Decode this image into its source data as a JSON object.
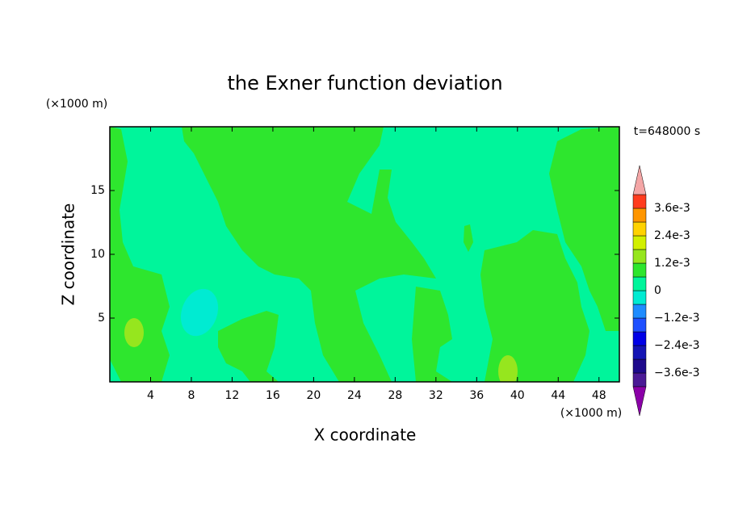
{
  "chart_data": {
    "type": "contour",
    "title": "the Exner function deviation",
    "xlabel": "X coordinate",
    "ylabel": "Z coordinate",
    "x_unit_label": "(×1000 m)",
    "y_unit_label": "(×1000 m)",
    "time_label": "t=648000 s",
    "xlim": [
      0,
      50
    ],
    "ylim": [
      0,
      20
    ],
    "xticks": [
      4,
      8,
      12,
      16,
      20,
      24,
      28,
      32,
      36,
      40,
      44,
      48
    ],
    "yticks": [
      5,
      10,
      15
    ],
    "colorbar": {
      "levels": [
        -0.0042,
        -0.0036,
        -0.003,
        -0.0024,
        -0.0018,
        -0.0012,
        -0.0006,
        0,
        0.0006,
        0.0012,
        0.0018,
        0.0024,
        0.003,
        0.0036,
        0.0042
      ],
      "colors": [
        "#4b1a96",
        "#1e0a8c",
        "#1414b4",
        "#0000e6",
        "#1e50ff",
        "#1e8cff",
        "#00ebd2",
        "#00f59b",
        "#2ee62e",
        "#96e61e",
        "#d2f000",
        "#ffd200",
        "#ff9600",
        "#ff3c1e"
      ],
      "under_color": "#8b00a8",
      "over_color": "#f4a6a6",
      "ticks": [
        {
          "value": 0.0036,
          "label": "3.6e-3"
        },
        {
          "value": 0.0024,
          "label": "2.4e-3"
        },
        {
          "value": 0.0012,
          "label": "1.2e-3"
        },
        0,
        {
          "value": -0.0012,
          "label": "−1.2e-3"
        },
        {
          "value": -0.0024,
          "label": "−2.4e-3"
        },
        {
          "value": -0.0036,
          "label": "−3.6e-3"
        }
      ]
    }
  }
}
